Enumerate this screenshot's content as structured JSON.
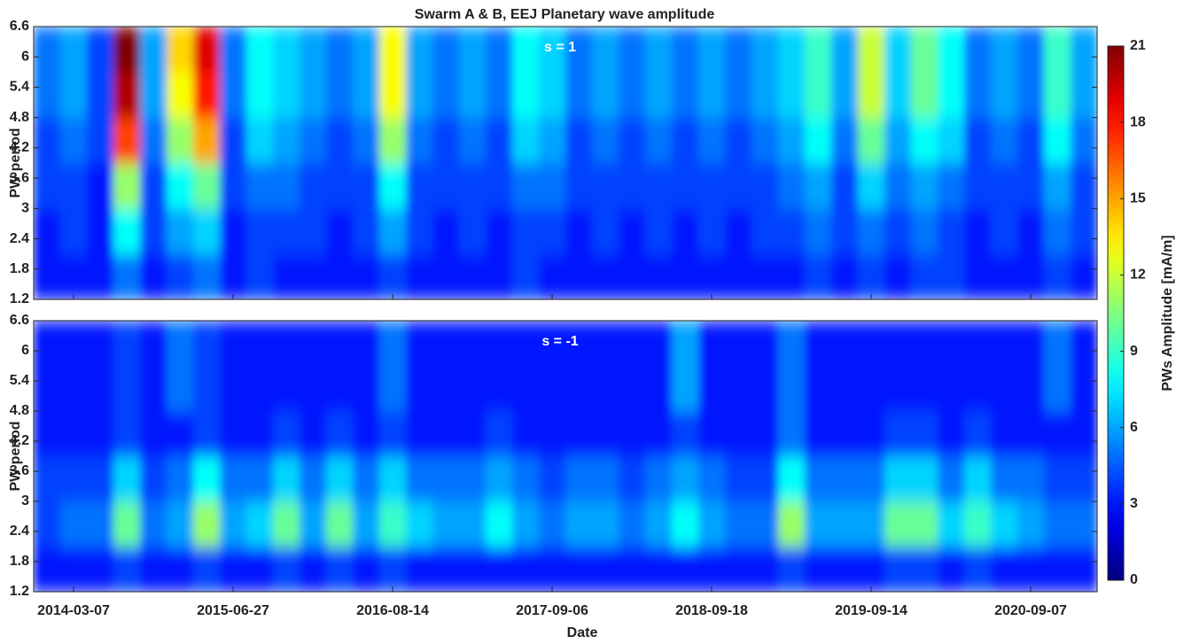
{
  "chart_data": {
    "type": "heatmap",
    "title": "Swarm A & B, EEJ Planetary wave amplitude",
    "x_label": "Date",
    "categories": [
      null,
      "2014-03-07",
      null,
      null,
      null,
      null,
      null,
      "2015-06-27",
      null,
      null,
      null,
      null,
      null,
      "2016-08-14",
      null,
      null,
      null,
      null,
      null,
      "2017-09-06",
      null,
      null,
      null,
      null,
      null,
      "2018-09-18",
      null,
      null,
      null,
      null,
      null,
      "2019-09-14",
      null,
      null,
      null,
      null,
      null,
      "2020-09-07",
      null,
      null
    ],
    "colorbar": {
      "label": "PWs Amplitude [mA/m]",
      "lim": [
        0,
        21
      ],
      "ticks": [
        0,
        3,
        6,
        9,
        12,
        15,
        18,
        21
      ]
    },
    "panels": [
      {
        "annotation": "s = 1",
        "y_label": "PW period",
        "ylim": [
          1.2,
          6.6
        ],
        "yticks": [
          1.2,
          1.8,
          2.4,
          3,
          3.6,
          4.2,
          4.8,
          5.4,
          6,
          6.6
        ],
        "y_bins": [
          1.2,
          2.1,
          3.0,
          3.9,
          4.8,
          5.7,
          6.6
        ],
        "values": [
          [
            3,
            3,
            3,
            5,
            3,
            4,
            5,
            3,
            4,
            3,
            3,
            3,
            3,
            4,
            3,
            3,
            3,
            3,
            4,
            3,
            3,
            3,
            3,
            3,
            3,
            3,
            3,
            3,
            3,
            4,
            3,
            4,
            3,
            4,
            4,
            3,
            3,
            3,
            4,
            3
          ],
          [
            3,
            4,
            3,
            8,
            4,
            6,
            7,
            3,
            4,
            4,
            4,
            3,
            4,
            6,
            4,
            3,
            4,
            3,
            4,
            4,
            3,
            4,
            3,
            4,
            3,
            4,
            3,
            4,
            4,
            5,
            4,
            5,
            4,
            5,
            4,
            3,
            4,
            3,
            5,
            4
          ],
          [
            4,
            4,
            3,
            11,
            4,
            8,
            10,
            4,
            5,
            5,
            4,
            4,
            4,
            8,
            4,
            4,
            4,
            4,
            5,
            5,
            4,
            4,
            4,
            4,
            4,
            4,
            4,
            4,
            5,
            6,
            4,
            7,
            5,
            6,
            5,
            4,
            4,
            4,
            6,
            4
          ],
          [
            4,
            5,
            4,
            17,
            5,
            11,
            15,
            4,
            7,
            6,
            5,
            4,
            5,
            11,
            5,
            4,
            5,
            4,
            7,
            6,
            4,
            5,
            4,
            5,
            4,
            5,
            4,
            5,
            6,
            8,
            5,
            10,
            6,
            8,
            7,
            4,
            5,
            4,
            8,
            5
          ],
          [
            5,
            6,
            4,
            20,
            6,
            13,
            18,
            5,
            8,
            7,
            6,
            5,
            6,
            13,
            6,
            5,
            6,
            5,
            8,
            7,
            5,
            6,
            5,
            6,
            5,
            6,
            5,
            6,
            7,
            9,
            6,
            12,
            7,
            10,
            8,
            5,
            6,
            5,
            9,
            6
          ],
          [
            5,
            6,
            4,
            21,
            6,
            14,
            19,
            5,
            8,
            7,
            6,
            5,
            6,
            13,
            6,
            5,
            6,
            5,
            8,
            7,
            5,
            6,
            5,
            6,
            5,
            6,
            5,
            6,
            7,
            9,
            6,
            12,
            7,
            10,
            8,
            5,
            6,
            5,
            9,
            6
          ]
        ]
      },
      {
        "annotation": "s = -1",
        "y_label": "PW period",
        "ylim": [
          1.2,
          6.6
        ],
        "yticks": [
          1.2,
          1.8,
          2.4,
          3,
          3.6,
          4.2,
          4.8,
          5.4,
          6,
          6.6
        ],
        "y_bins": [
          1.2,
          2.1,
          3.0,
          3.9,
          4.8,
          5.7,
          6.6
        ],
        "values": [
          [
            3,
            3,
            3,
            4,
            3,
            3,
            4,
            3,
            3,
            4,
            3,
            4,
            3,
            4,
            3,
            3,
            3,
            3,
            3,
            3,
            3,
            3,
            3,
            3,
            3,
            3,
            3,
            3,
            4,
            3,
            3,
            3,
            4,
            4,
            3,
            4,
            3,
            3,
            3,
            3
          ],
          [
            4,
            5,
            5,
            10,
            5,
            6,
            11,
            6,
            7,
            10,
            6,
            10,
            6,
            9,
            7,
            6,
            6,
            8,
            6,
            5,
            6,
            6,
            5,
            6,
            8,
            6,
            5,
            5,
            11,
            6,
            6,
            6,
            10,
            10,
            7,
            9,
            7,
            6,
            5,
            5
          ],
          [
            4,
            4,
            4,
            7,
            4,
            5,
            8,
            5,
            5,
            7,
            5,
            7,
            5,
            7,
            5,
            5,
            5,
            6,
            5,
            4,
            5,
            5,
            4,
            5,
            6,
            5,
            4,
            4,
            8,
            5,
            5,
            5,
            7,
            7,
            5,
            7,
            5,
            5,
            4,
            4
          ],
          [
            3,
            3,
            3,
            4,
            3,
            3,
            4,
            3,
            3,
            4,
            3,
            4,
            3,
            4,
            3,
            3,
            3,
            4,
            3,
            3,
            3,
            3,
            3,
            3,
            4,
            3,
            3,
            3,
            5,
            3,
            3,
            3,
            4,
            4,
            3,
            4,
            3,
            3,
            3,
            3
          ],
          [
            3,
            3,
            3,
            4,
            3,
            5,
            4,
            3,
            3,
            3,
            3,
            3,
            3,
            5,
            3,
            3,
            3,
            3,
            3,
            3,
            3,
            3,
            3,
            3,
            6,
            3,
            3,
            3,
            5,
            3,
            3,
            3,
            3,
            3,
            3,
            3,
            3,
            3,
            5,
            3
          ],
          [
            3,
            3,
            3,
            4,
            3,
            5,
            4,
            3,
            3,
            3,
            3,
            3,
            3,
            5,
            3,
            3,
            3,
            3,
            3,
            3,
            3,
            3,
            3,
            3,
            6,
            3,
            3,
            3,
            5,
            3,
            3,
            3,
            3,
            3,
            3,
            3,
            3,
            3,
            5,
            3
          ]
        ]
      }
    ]
  }
}
